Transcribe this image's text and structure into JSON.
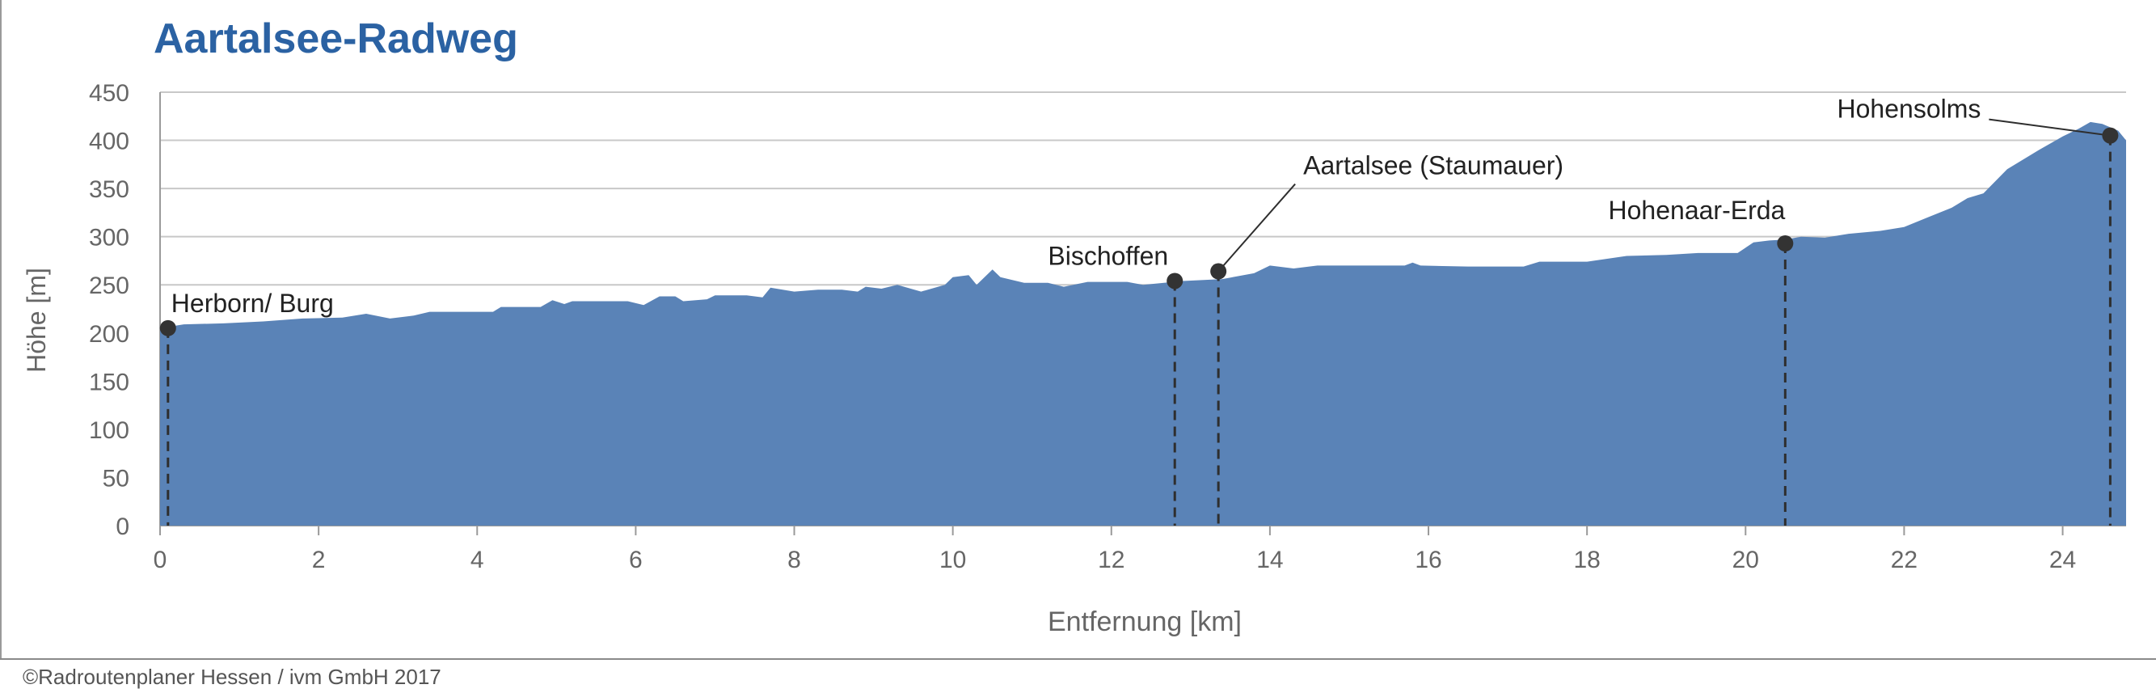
{
  "page": {
    "title": "Aartalsee-Radweg",
    "copyright": "©Radroutenplaner Hessen / ivm GmbH 2017"
  },
  "colors": {
    "fill": "#5a83b7",
    "title": "#2b62a3",
    "axis_text": "#666666",
    "grid": "#c8c8c8",
    "marker": "#333333"
  },
  "chart_data": {
    "type": "area",
    "title": "Aartalsee-Radweg",
    "xlabel": "Entfernung [km]",
    "ylabel": "Höhe [m]",
    "xlim": [
      0,
      24.8
    ],
    "ylim": [
      0,
      450
    ],
    "x_ticks": [
      0,
      2,
      4,
      6,
      8,
      10,
      12,
      14,
      16,
      18,
      20,
      22,
      24
    ],
    "y_ticks": [
      0,
      50,
      100,
      150,
      200,
      250,
      300,
      350,
      400,
      450
    ],
    "grid": "horizontal",
    "profile": [
      [
        0,
        205
      ],
      [
        0.3,
        209
      ],
      [
        0.8,
        210
      ],
      [
        1.3,
        212
      ],
      [
        1.8,
        215
      ],
      [
        2.3,
        216
      ],
      [
        2.6,
        220
      ],
      [
        2.9,
        215
      ],
      [
        3.2,
        218
      ],
      [
        3.4,
        222
      ],
      [
        4.2,
        222
      ],
      [
        4.3,
        227
      ],
      [
        4.8,
        227
      ],
      [
        4.95,
        234
      ],
      [
        5.1,
        230
      ],
      [
        5.2,
        233
      ],
      [
        5.9,
        233
      ],
      [
        6.1,
        229
      ],
      [
        6.3,
        238
      ],
      [
        6.5,
        238
      ],
      [
        6.6,
        233
      ],
      [
        6.9,
        235
      ],
      [
        7.0,
        239
      ],
      [
        7.4,
        239
      ],
      [
        7.6,
        237
      ],
      [
        7.7,
        247
      ],
      [
        8.0,
        243
      ],
      [
        8.3,
        245
      ],
      [
        8.6,
        245
      ],
      [
        8.8,
        243
      ],
      [
        8.9,
        248
      ],
      [
        9.1,
        246
      ],
      [
        9.3,
        250
      ],
      [
        9.6,
        243
      ],
      [
        9.9,
        250
      ],
      [
        10.0,
        258
      ],
      [
        10.2,
        260
      ],
      [
        10.3,
        250
      ],
      [
        10.5,
        266
      ],
      [
        10.6,
        258
      ],
      [
        10.9,
        252
      ],
      [
        11.2,
        252
      ],
      [
        11.4,
        248
      ],
      [
        11.7,
        253
      ],
      [
        12.2,
        253
      ],
      [
        12.4,
        250
      ],
      [
        12.9,
        254
      ],
      [
        13.4,
        256
      ],
      [
        13.8,
        262
      ],
      [
        14.0,
        270
      ],
      [
        14.3,
        267
      ],
      [
        14.6,
        270
      ],
      [
        15.3,
        270
      ],
      [
        15.7,
        270
      ],
      [
        15.8,
        273
      ],
      [
        15.9,
        270
      ],
      [
        16.5,
        269
      ],
      [
        17.2,
        269
      ],
      [
        17.4,
        274
      ],
      [
        18.0,
        274
      ],
      [
        18.5,
        280
      ],
      [
        19.0,
        281
      ],
      [
        19.4,
        283
      ],
      [
        19.9,
        283
      ],
      [
        20.1,
        294
      ],
      [
        20.3,
        296
      ],
      [
        20.5,
        297
      ],
      [
        20.7,
        300
      ],
      [
        21.0,
        299
      ],
      [
        21.3,
        303
      ],
      [
        21.7,
        306
      ],
      [
        22.0,
        310
      ],
      [
        22.3,
        320
      ],
      [
        22.6,
        330
      ],
      [
        22.8,
        340
      ],
      [
        23.0,
        345
      ],
      [
        23.3,
        370
      ],
      [
        23.5,
        380
      ],
      [
        23.7,
        390
      ],
      [
        24.0,
        404
      ],
      [
        24.2,
        412
      ],
      [
        24.35,
        419
      ],
      [
        24.5,
        417
      ],
      [
        24.7,
        410
      ],
      [
        24.8,
        400
      ]
    ],
    "markers": [
      {
        "name": "Herborn/ Burg",
        "x": 0.1,
        "y": 205
      },
      {
        "name": "Bischoffen",
        "x": 12.8,
        "y": 254
      },
      {
        "name": "Aartalsee (Staumauer)",
        "x": 13.35,
        "y": 264
      },
      {
        "name": "Hohenaar-Erda",
        "x": 20.5,
        "y": 293
      },
      {
        "name": "Hohensolms",
        "x": 24.6,
        "y": 405
      }
    ]
  }
}
